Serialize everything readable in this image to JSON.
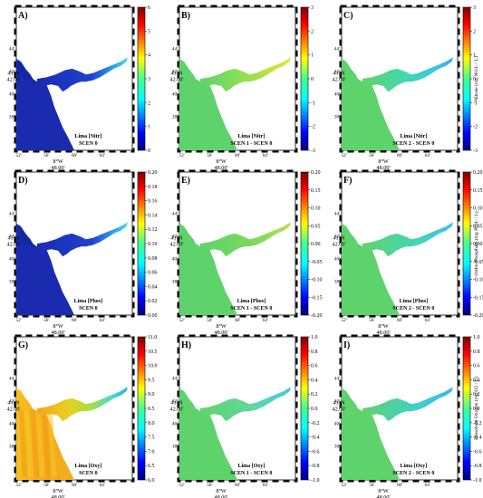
{
  "figure": {
    "lat_label": "41°N",
    "lat_minutes": "42.00'",
    "lon_label": "8°W",
    "lon_minutes": "48.00'",
    "y_ticks": [
      "44'",
      "42'",
      "40'",
      "38'"
    ],
    "x_ticks": [
      "52'",
      "56'",
      "60'",
      "64'"
    ]
  },
  "rows": [
    {
      "variable": "Nitrate",
      "colorbars": [
        {
          "ticks": [
            "6",
            "5",
            "4",
            "3",
            "2",
            "1",
            "0"
          ],
          "range": [
            0,
            6
          ]
        },
        {
          "ticks": [
            "3",
            "2",
            "1",
            "0",
            "-1",
            "-2",
            "-3"
          ],
          "range": [
            -3,
            3
          ]
        },
        {
          "ticks": [
            "3",
            "2",
            "1",
            "0",
            "-1",
            "-2",
            "-3"
          ],
          "range": [
            -3,
            3
          ]
        }
      ],
      "unit": "Nitrate (mg NO3- / L)",
      "panels": [
        {
          "letter": "A)",
          "caption1": "Lima [Nitr]",
          "caption2": "SCEN 0",
          "fill": "blue"
        },
        {
          "letter": "B)",
          "caption1": "Lima [Nitr]",
          "caption2": "SCEN 1 - SCEN 0",
          "fill": "green"
        },
        {
          "letter": "C)",
          "caption1": "Lima [Nitr]",
          "caption2": "SCEN 2 - SCEN 0",
          "fill": "green"
        }
      ]
    },
    {
      "variable": "Phosphate",
      "colorbars": [
        {
          "ticks": [
            "0.20",
            "0.18",
            "0.16",
            "0.14",
            "0.12",
            "0.10",
            "0.08",
            "0.06",
            "0.04",
            "0.02",
            "0.00"
          ],
          "range": [
            0,
            0.2
          ]
        },
        {
          "ticks": [
            "0.20",
            "0.15",
            "0.10",
            "0.05",
            "0.00",
            "-0.05",
            "-0.10",
            "-0.15",
            "-0.20"
          ],
          "range": [
            -0.2,
            0.2
          ]
        },
        {
          "ticks": [
            "0.20",
            "0.15",
            "0.10",
            "0.05",
            "0.00",
            "-0.05",
            "-0.10",
            "-0.15",
            "-0.20"
          ],
          "range": [
            -0.2,
            0.2
          ]
        }
      ],
      "unit": "Ortho-Phosphate (mg PO4- / L)",
      "panels": [
        {
          "letter": "D)",
          "caption1": "Lima [Phos]",
          "caption2": "SCEN 0",
          "fill": "blue"
        },
        {
          "letter": "E)",
          "caption1": "Lima [Phos]",
          "caption2": "SCEN 1 - SCEN 0",
          "fill": "green"
        },
        {
          "letter": "F)",
          "caption1": "Lima [Phos]",
          "caption2": "SCEN 2 - SCEN 0",
          "fill": "green"
        }
      ]
    },
    {
      "variable": "Dissolved Oxygen",
      "colorbars": [
        {
          "ticks": [
            "11.0",
            "10.5",
            "10.0",
            "9.5",
            "9.0",
            "8.5",
            "8.0",
            "7.5",
            "7.0",
            "6.5",
            "6.0"
          ],
          "range": [
            6,
            11
          ]
        },
        {
          "ticks": [
            "1.0",
            "0.8",
            "0.6",
            "0.4",
            "0.2",
            "0.0",
            "-0.2",
            "-0.4",
            "-0.6",
            "-0.8",
            "-1.0"
          ],
          "range": [
            -1,
            1
          ]
        },
        {
          "ticks": [
            "1.0",
            "0.8",
            "0.6",
            "0.4",
            "0.2",
            "0.0",
            "-0.2",
            "-0.4",
            "-0.6",
            "-0.8",
            "-1.0"
          ],
          "range": [
            -1,
            1
          ]
        }
      ],
      "unit": "Dissolved Oxygen (mg O2 / L)",
      "panels": [
        {
          "letter": "G)",
          "caption1": "Lima [Oxy]",
          "caption2": "SCEN 0",
          "fill": "orange"
        },
        {
          "letter": "H)",
          "caption1": "Lima [Oxy]",
          "caption2": "SCEN 1 - SCEN 0",
          "fill": "green"
        },
        {
          "letter": "I)",
          "caption1": "Lima [Oxy]",
          "caption2": "SCEN 2 - SCEN 0",
          "fill": "green"
        }
      ]
    }
  ],
  "colors": {
    "blue": "#1a2bb0",
    "green_main": "#5fd36b",
    "orange_main": "#f4b321",
    "estuary_cyan": "#3fd6e6",
    "estuary_yellow": "#d8e43a"
  }
}
